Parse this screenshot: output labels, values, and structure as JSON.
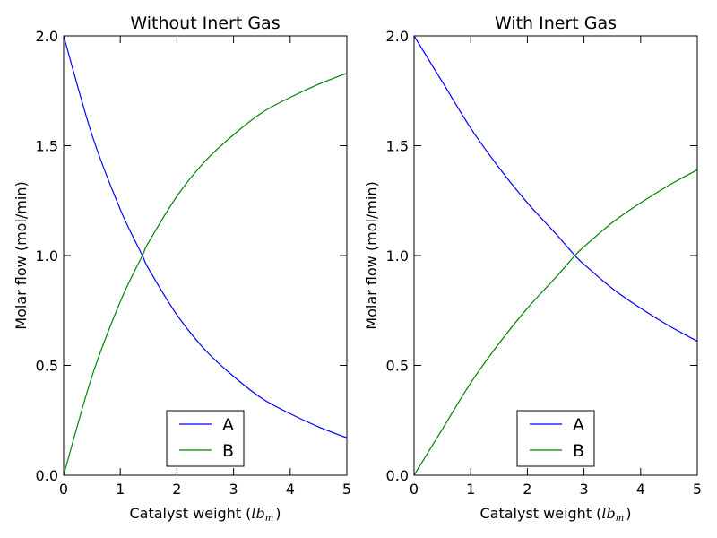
{
  "chart_data": [
    {
      "type": "line",
      "title": "Without Inert Gas",
      "xlabel_prefix": "Catalyst weight (",
      "xlabel_unit": "lb",
      "xlabel_unit_sub": "m",
      "xlabel_suffix": ")",
      "ylabel": "Molar flow (mol/min)",
      "xlim": [
        0,
        5
      ],
      "ylim": [
        0.0,
        2.0
      ],
      "x_ticks": [
        "0",
        "1",
        "2",
        "3",
        "4",
        "5"
      ],
      "y_ticks": [
        "0.0",
        "0.5",
        "1.0",
        "1.5",
        "2.0"
      ],
      "legend_position": "lower-center",
      "series": [
        {
          "name": "A",
          "color": "#0000ff",
          "x": [
            0,
            0.5,
            1.0,
            1.39,
            1.5,
            2.0,
            2.5,
            3.0,
            3.5,
            4.0,
            4.5,
            5.0
          ],
          "y": [
            2.0,
            1.55,
            1.21,
            1.0,
            0.94,
            0.73,
            0.57,
            0.45,
            0.35,
            0.28,
            0.22,
            0.17
          ]
        },
        {
          "name": "B",
          "color": "#008000",
          "x": [
            0,
            0.5,
            1.0,
            1.39,
            1.5,
            2.0,
            2.5,
            3.0,
            3.5,
            4.0,
            4.5,
            5.0
          ],
          "y": [
            0.0,
            0.45,
            0.79,
            1.0,
            1.06,
            1.27,
            1.43,
            1.55,
            1.65,
            1.72,
            1.78,
            1.83
          ]
        }
      ]
    },
    {
      "type": "line",
      "title": "With Inert Gas",
      "xlabel_prefix": "Catalyst weight (",
      "xlabel_unit": "lb",
      "xlabel_unit_sub": "m",
      "xlabel_suffix": ")",
      "ylabel": "Molar flow (mol/min)",
      "xlim": [
        0,
        5
      ],
      "ylim": [
        0.0,
        2.0
      ],
      "x_ticks": [
        "0",
        "1",
        "2",
        "3",
        "4",
        "5"
      ],
      "y_ticks": [
        "0.0",
        "0.5",
        "1.0",
        "1.5",
        "2.0"
      ],
      "legend_position": "lower-center",
      "series": [
        {
          "name": "A",
          "color": "#0000ff",
          "x": [
            0,
            0.5,
            1.0,
            1.5,
            2.0,
            2.5,
            2.84,
            3.0,
            3.5,
            4.0,
            4.5,
            5.0
          ],
          "y": [
            2.0,
            1.79,
            1.58,
            1.4,
            1.24,
            1.1,
            1.0,
            0.96,
            0.85,
            0.76,
            0.68,
            0.61
          ]
        },
        {
          "name": "B",
          "color": "#008000",
          "x": [
            0,
            0.5,
            1.0,
            1.5,
            2.0,
            2.5,
            2.84,
            3.0,
            3.5,
            4.0,
            4.5,
            5.0
          ],
          "y": [
            0.0,
            0.21,
            0.42,
            0.6,
            0.76,
            0.9,
            1.0,
            1.04,
            1.15,
            1.24,
            1.32,
            1.39
          ]
        }
      ]
    }
  ]
}
